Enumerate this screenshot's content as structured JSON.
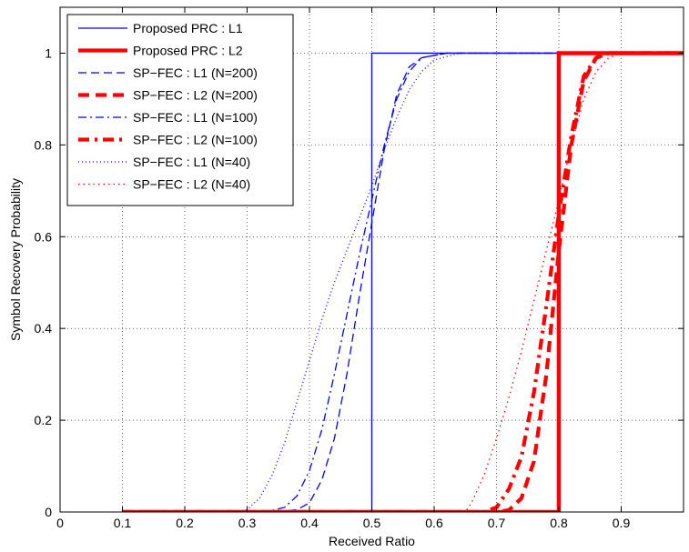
{
  "chart_data": {
    "type": "line",
    "xlabel": "Received Ratio",
    "ylabel": "Symbol Recovery Probability",
    "xlim": [
      0,
      1.0
    ],
    "ylim": [
      0,
      1.1
    ],
    "x_ticks": [
      0,
      0.1,
      0.2,
      0.3,
      0.4,
      0.5,
      0.6,
      0.7,
      0.8,
      0.9
    ],
    "y_ticks": [
      0,
      0.2,
      0.4,
      0.6,
      0.8,
      1
    ],
    "x_tick_labels": [
      "0",
      "0.1",
      "0.2",
      "0.3",
      "0.4",
      "0.5",
      "0.6",
      "0.7",
      "0.8",
      "0.9"
    ],
    "y_tick_labels": [
      "0",
      "0.2",
      "0.4",
      "0.6",
      "0.8",
      "1"
    ],
    "grid": true,
    "legend_position": "top-left",
    "series": [
      {
        "name": "Proposed PRC : L1",
        "color": "#0000ff",
        "style": "solid",
        "weight": "thin",
        "points": [
          [
            0.1,
            0
          ],
          [
            0.5,
            0
          ],
          [
            0.5,
            1
          ],
          [
            1.0,
            1
          ]
        ]
      },
      {
        "name": "Proposed PRC : L2",
        "color": "#ff0000",
        "style": "solid",
        "weight": "thick",
        "points": [
          [
            0.1,
            0
          ],
          [
            0.8,
            0
          ],
          [
            0.8,
            1
          ],
          [
            1.0,
            1
          ]
        ]
      },
      {
        "name": "SP−FEC : L1 (N=200)",
        "color": "#0000ff",
        "style": "dashed",
        "weight": "thin",
        "points": [
          [
            0.1,
            0
          ],
          [
            0.35,
            0
          ],
          [
            0.38,
            0.005
          ],
          [
            0.4,
            0.02
          ],
          [
            0.42,
            0.07
          ],
          [
            0.44,
            0.16
          ],
          [
            0.46,
            0.3
          ],
          [
            0.48,
            0.47
          ],
          [
            0.5,
            0.63
          ],
          [
            0.52,
            0.79
          ],
          [
            0.54,
            0.91
          ],
          [
            0.56,
            0.97
          ],
          [
            0.58,
            0.99
          ],
          [
            0.62,
            1.0
          ],
          [
            1.0,
            1.0
          ]
        ]
      },
      {
        "name": "SP−FEC : L2 (N=200)",
        "color": "#ff0000",
        "style": "dashed",
        "weight": "thick",
        "points": [
          [
            0.1,
            0
          ],
          [
            0.7,
            0
          ],
          [
            0.72,
            0.004
          ],
          [
            0.74,
            0.03
          ],
          [
            0.76,
            0.11
          ],
          [
            0.78,
            0.3
          ],
          [
            0.8,
            0.57
          ],
          [
            0.82,
            0.8
          ],
          [
            0.84,
            0.94
          ],
          [
            0.86,
            0.99
          ],
          [
            0.88,
            1.0
          ],
          [
            1.0,
            1.0
          ]
        ]
      },
      {
        "name": "SP−FEC : L1 (N=100)",
        "color": "#0000ff",
        "style": "dashdot",
        "weight": "thin",
        "points": [
          [
            0.1,
            0
          ],
          [
            0.33,
            0
          ],
          [
            0.36,
            0.01
          ],
          [
            0.38,
            0.035
          ],
          [
            0.4,
            0.09
          ],
          [
            0.42,
            0.18
          ],
          [
            0.44,
            0.3
          ],
          [
            0.46,
            0.43
          ],
          [
            0.48,
            0.56
          ],
          [
            0.5,
            0.68
          ],
          [
            0.52,
            0.8
          ],
          [
            0.54,
            0.9
          ],
          [
            0.56,
            0.96
          ],
          [
            0.58,
            0.99
          ],
          [
            0.62,
            1.0
          ],
          [
            1.0,
            1.0
          ]
        ]
      },
      {
        "name": "SP−FEC : L2 (N=100)",
        "color": "#ff0000",
        "style": "dashdot",
        "weight": "thick",
        "points": [
          [
            0.1,
            0
          ],
          [
            0.68,
            0
          ],
          [
            0.7,
            0.01
          ],
          [
            0.72,
            0.05
          ],
          [
            0.74,
            0.12
          ],
          [
            0.76,
            0.26
          ],
          [
            0.78,
            0.45
          ],
          [
            0.8,
            0.65
          ],
          [
            0.82,
            0.82
          ],
          [
            0.84,
            0.95
          ],
          [
            0.86,
            0.99
          ],
          [
            0.88,
            1.0
          ],
          [
            1.0,
            1.0
          ]
        ]
      },
      {
        "name": "SP−FEC : L1 (N=40)",
        "color": "#0000ff",
        "style": "dotted",
        "weight": "thin",
        "points": [
          [
            0.1,
            0
          ],
          [
            0.28,
            0
          ],
          [
            0.3,
            0.005
          ],
          [
            0.32,
            0.03
          ],
          [
            0.34,
            0.08
          ],
          [
            0.36,
            0.15
          ],
          [
            0.38,
            0.24
          ],
          [
            0.4,
            0.33
          ],
          [
            0.42,
            0.42
          ],
          [
            0.44,
            0.5
          ],
          [
            0.46,
            0.57
          ],
          [
            0.48,
            0.64
          ],
          [
            0.5,
            0.71
          ],
          [
            0.52,
            0.79
          ],
          [
            0.54,
            0.86
          ],
          [
            0.56,
            0.92
          ],
          [
            0.58,
            0.96
          ],
          [
            0.6,
            0.985
          ],
          [
            0.64,
            1.0
          ],
          [
            1.0,
            1.0
          ]
        ]
      },
      {
        "name": "SP−FEC : L2 (N=40)",
        "color": "#ff0000",
        "style": "dotted",
        "weight": "thick",
        "points": [
          [
            0.1,
            0
          ],
          [
            0.65,
            0
          ],
          [
            0.66,
            0.02
          ],
          [
            0.68,
            0.08
          ],
          [
            0.7,
            0.16
          ],
          [
            0.72,
            0.25
          ],
          [
            0.74,
            0.35
          ],
          [
            0.76,
            0.46
          ],
          [
            0.78,
            0.57
          ],
          [
            0.8,
            0.68
          ],
          [
            0.82,
            0.8
          ],
          [
            0.84,
            0.9
          ],
          [
            0.86,
            0.96
          ],
          [
            0.88,
            0.99
          ],
          [
            0.9,
            1.0
          ],
          [
            1.0,
            1.0
          ]
        ]
      }
    ]
  }
}
